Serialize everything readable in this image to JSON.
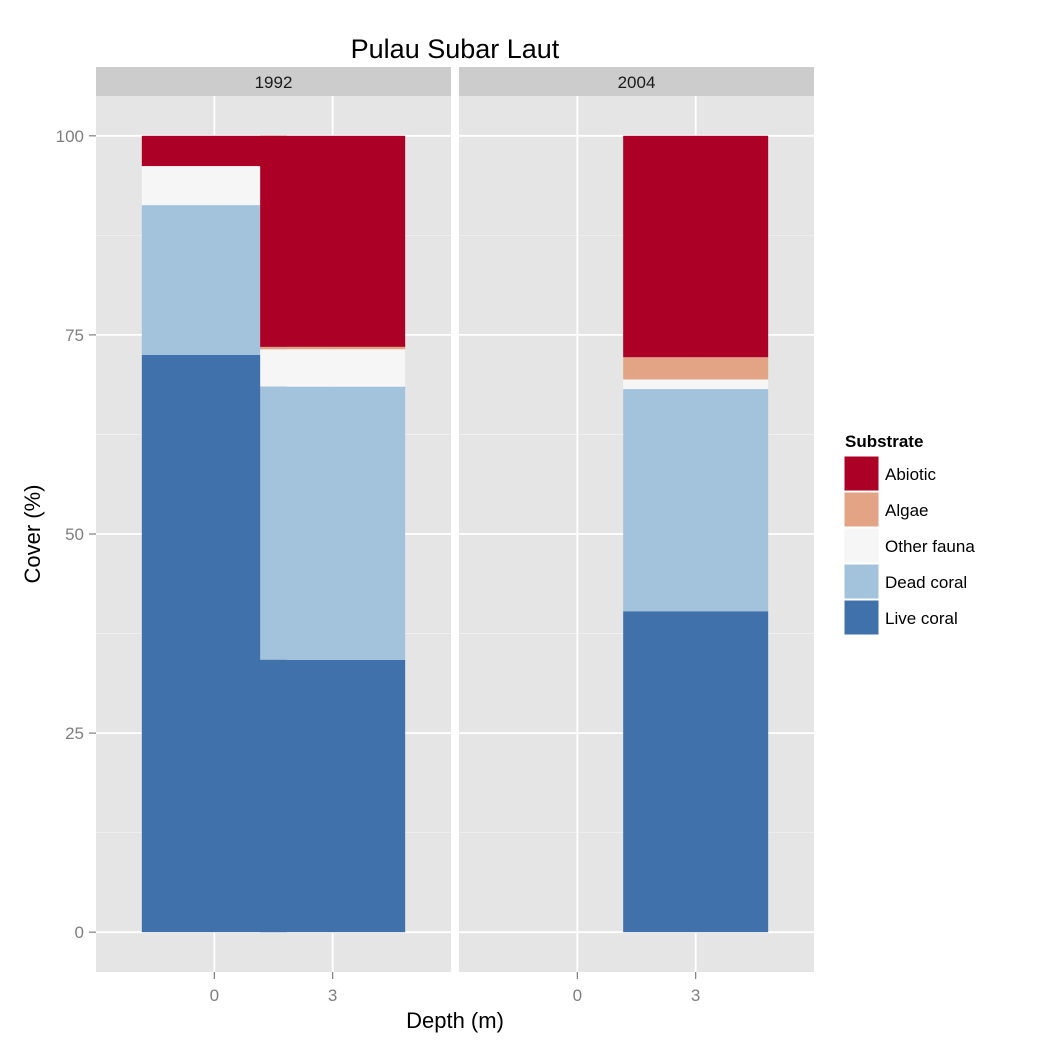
{
  "chart_data": {
    "type": "bar",
    "stacked": true,
    "title": "Pulau Subar Laut",
    "xlabel": "Depth (m)",
    "ylabel": "Cover (%)",
    "ylim": [
      -5,
      105
    ],
    "y_ticks": [
      0,
      25,
      50,
      75,
      100
    ],
    "categories": [
      "0",
      "3"
    ],
    "grid": true,
    "legend": {
      "title": "Substrate",
      "position": "right",
      "order": [
        "Abiotic",
        "Algae",
        "Other fauna",
        "Dead coral",
        "Live coral"
      ]
    },
    "colors": {
      "Live coral": "#4071ab",
      "Dead coral": "#a3c3dc",
      "Other fauna": "#f6f6f6",
      "Algae": "#e2a484",
      "Abiotic": "#ac0026"
    },
    "stack_order": [
      "Live coral",
      "Dead coral",
      "Other fauna",
      "Algae",
      "Abiotic"
    ],
    "panels": [
      {
        "label": "1992",
        "bars": [
          {
            "category": "0",
            "values": {
              "Live coral": 72.5,
              "Dead coral": 18.8,
              "Other fauna": 4.9,
              "Algae": 0,
              "Abiotic": 3.8
            }
          },
          {
            "category": "3",
            "values": {
              "Live coral": 34.2,
              "Dead coral": 34.3,
              "Other fauna": 4.7,
              "Algae": 0.3,
              "Abiotic": 26.5
            }
          }
        ]
      },
      {
        "label": "2004",
        "bars": [
          {
            "category": "3",
            "values": {
              "Live coral": 40.3,
              "Dead coral": 27.9,
              "Other fauna": 1.2,
              "Algae": 2.8,
              "Abiotic": 27.8
            }
          }
        ]
      }
    ]
  }
}
